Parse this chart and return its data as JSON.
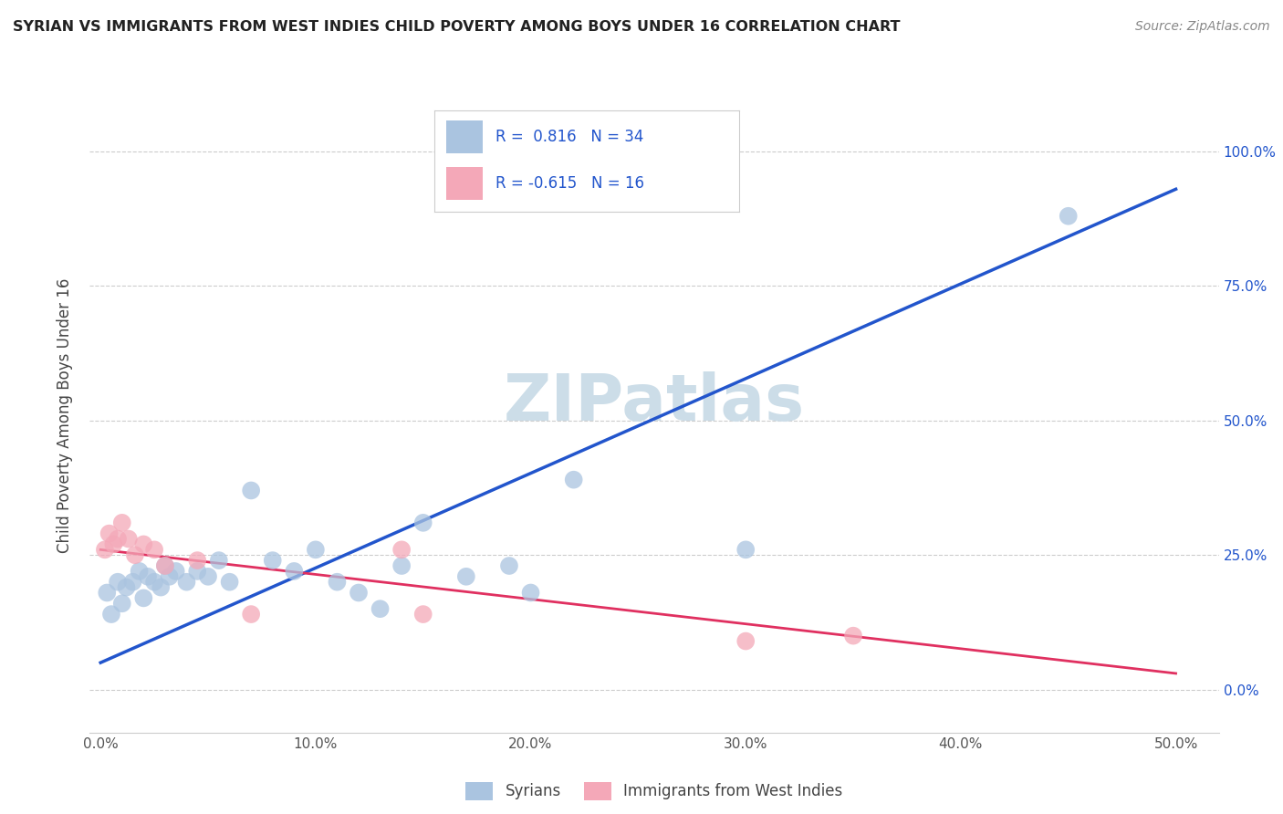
{
  "title": "SYRIAN VS IMMIGRANTS FROM WEST INDIES CHILD POVERTY AMONG BOYS UNDER 16 CORRELATION CHART",
  "source": "Source: ZipAtlas.com",
  "ylabel": "Child Poverty Among Boys Under 16",
  "xlabel_vals": [
    0,
    10,
    20,
    30,
    40,
    50
  ],
  "ylabel_vals": [
    0,
    25,
    50,
    75,
    100
  ],
  "xlim": [
    -0.5,
    52
  ],
  "ylim": [
    -8,
    110
  ],
  "blue_R": "0.816",
  "blue_N": "34",
  "pink_R": "-0.615",
  "pink_N": "16",
  "blue_color": "#aac4e0",
  "pink_color": "#f4a8b8",
  "blue_line_color": "#2255cc",
  "pink_line_color": "#e03060",
  "watermark": "ZIPatlas",
  "watermark_color": "#ccdde8",
  "legend_label_blue": "Syrians",
  "legend_label_pink": "Immigrants from West Indies",
  "blue_scatter_x": [
    0.3,
    0.5,
    0.8,
    1.0,
    1.2,
    1.5,
    1.8,
    2.0,
    2.2,
    2.5,
    2.8,
    3.0,
    3.2,
    3.5,
    4.0,
    4.5,
    5.0,
    5.5,
    6.0,
    7.0,
    8.0,
    9.0,
    10.0,
    11.0,
    12.0,
    13.0,
    14.0,
    15.0,
    17.0,
    19.0,
    20.0,
    22.0,
    30.0,
    45.0
  ],
  "blue_scatter_y": [
    18,
    14,
    20,
    16,
    19,
    20,
    22,
    17,
    21,
    20,
    19,
    23,
    21,
    22,
    20,
    22,
    21,
    24,
    20,
    37,
    24,
    22,
    26,
    20,
    18,
    15,
    23,
    31,
    21,
    23,
    18,
    39,
    26,
    88
  ],
  "pink_scatter_x": [
    0.2,
    0.4,
    0.6,
    0.8,
    1.0,
    1.3,
    1.6,
    2.0,
    2.5,
    3.0,
    4.5,
    7.0,
    14.0,
    15.0,
    30.0,
    35.0
  ],
  "pink_scatter_y": [
    26,
    29,
    27,
    28,
    31,
    28,
    25,
    27,
    26,
    23,
    24,
    14,
    26,
    14,
    9,
    10
  ],
  "blue_line_x": [
    0,
    50
  ],
  "blue_line_y": [
    5,
    93
  ],
  "pink_line_x": [
    0,
    50
  ],
  "pink_line_y": [
    26,
    3
  ]
}
